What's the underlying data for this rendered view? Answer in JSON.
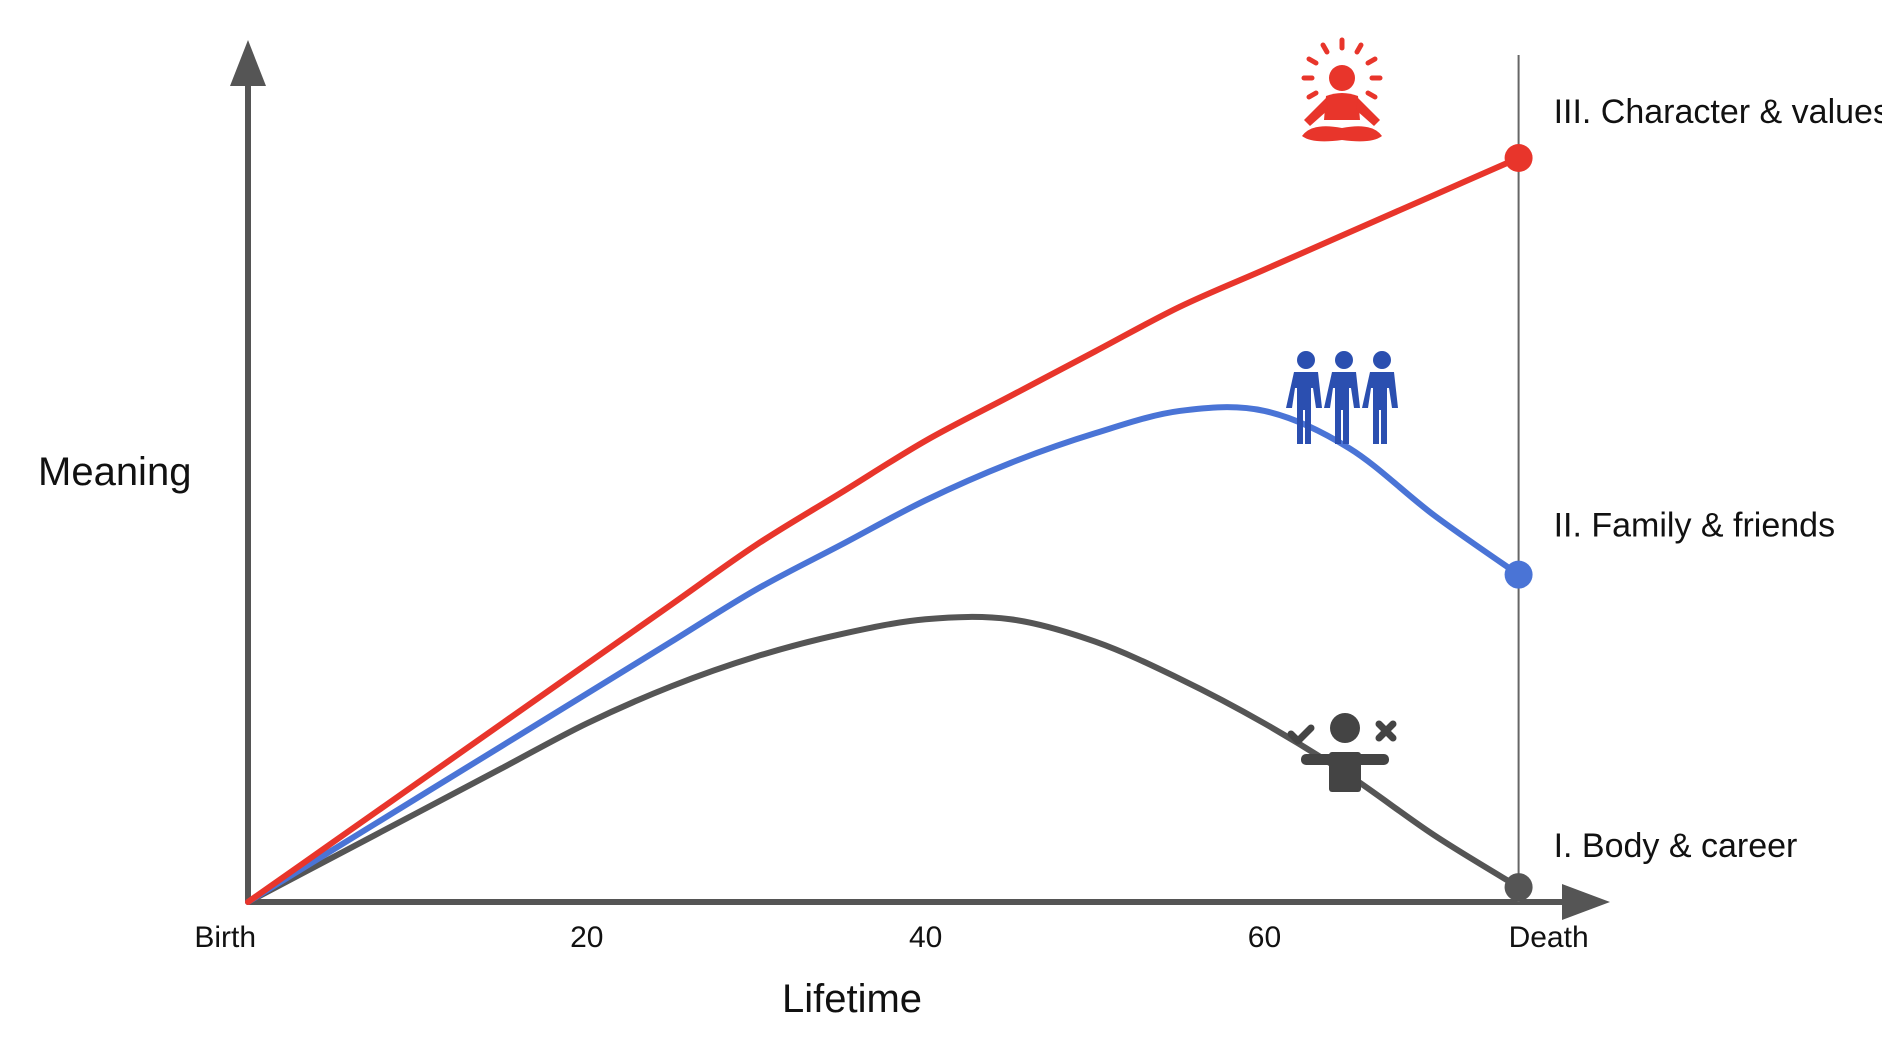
{
  "chart_data": {
    "type": "line",
    "ylabel": "Meaning",
    "xlabel": "Lifetime",
    "x_ticks": [
      {
        "value": 0,
        "label": "Birth"
      },
      {
        "value": 20,
        "label": "20"
      },
      {
        "value": 40,
        "label": "40"
      },
      {
        "value": 60,
        "label": "60"
      },
      {
        "value": 75,
        "label": "Death"
      }
    ],
    "xlim": [
      0,
      85
    ],
    "ylim": [
      0,
      100
    ],
    "death_marker": 75,
    "grid": false,
    "series": [
      {
        "name": "III. Character & values",
        "color": "#e8352b",
        "icon": "meditation-icon",
        "x": [
          0,
          5,
          10,
          15,
          20,
          25,
          30,
          35,
          40,
          45,
          50,
          55,
          60,
          65,
          70,
          75
        ],
        "y": [
          0,
          8,
          16,
          24,
          32,
          40,
          48,
          55,
          62,
          68,
          74,
          80,
          85,
          90,
          95,
          100
        ]
      },
      {
        "name": "II. Family & friends",
        "color": "#4a74d6",
        "icon": "group-icon",
        "x": [
          0,
          5,
          10,
          15,
          20,
          25,
          30,
          35,
          40,
          45,
          50,
          55,
          60,
          65,
          70,
          75
        ],
        "y": [
          0,
          7,
          14,
          21,
          28,
          35,
          42,
          48,
          54,
          59,
          63,
          66,
          66,
          61,
          52,
          44
        ]
      },
      {
        "name": "I. Body & career",
        "color": "#555555",
        "icon": "decision-person-icon",
        "x": [
          0,
          5,
          10,
          15,
          20,
          25,
          30,
          35,
          40,
          45,
          50,
          55,
          60,
          65,
          70,
          75
        ],
        "y": [
          0,
          6,
          12,
          18,
          24,
          29,
          33,
          36,
          38,
          38,
          35,
          30,
          24,
          17,
          9,
          2
        ]
      }
    ]
  }
}
